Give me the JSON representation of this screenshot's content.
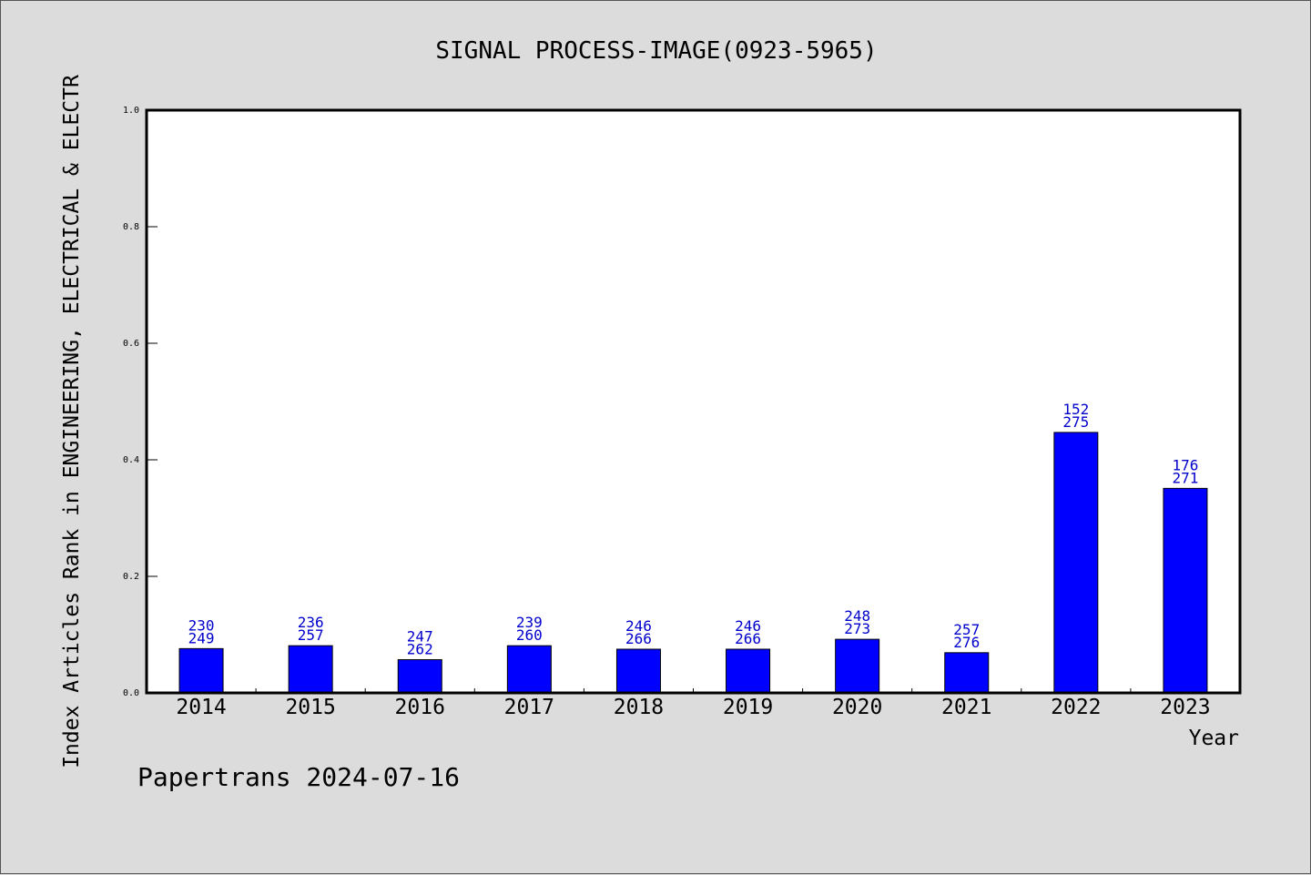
{
  "chart_data": {
    "type": "bar",
    "title": "SIGNAL PROCESS-IMAGE(0923-5965)",
    "xlabel": "Year",
    "ylabel": "Index Articles Rank in ENGINEERING, ELECTRICAL & ELECTR",
    "ylim": [
      0,
      1.0
    ],
    "yticks": [
      "0.0",
      "0.2",
      "0.4",
      "0.6",
      "0.8",
      "1.0"
    ],
    "categories": [
      "2014",
      "2015",
      "2016",
      "2017",
      "2018",
      "2019",
      "2020",
      "2021",
      "2022",
      "2023"
    ],
    "values": [
      0.076,
      0.081,
      0.057,
      0.081,
      0.075,
      0.075,
      0.092,
      0.069,
      0.447,
      0.351
    ],
    "rank_labels": [
      "230",
      "236",
      "247",
      "239",
      "246",
      "246",
      "248",
      "257",
      "152",
      "176"
    ],
    "total_labels": [
      "249",
      "257",
      "262",
      "260",
      "266",
      "266",
      "273",
      "276",
      "275",
      "271"
    ],
    "bar_color": "#0000ff",
    "label_color": "#0000cc",
    "grid": false
  },
  "footer": "Papertrans 2024-07-16"
}
